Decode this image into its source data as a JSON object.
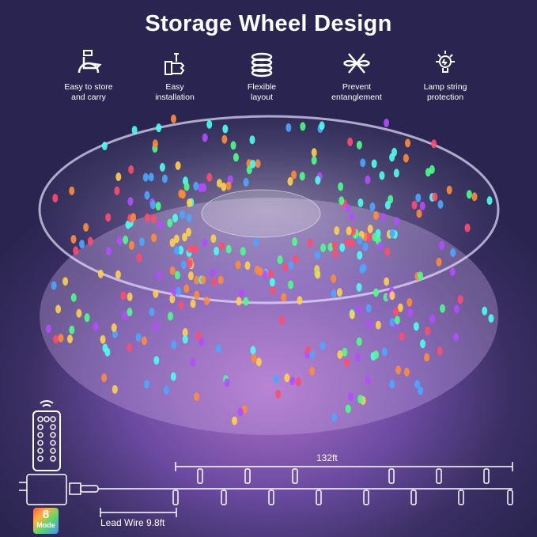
{
  "title": "Storage Wheel Design",
  "features": [
    {
      "icon": "hand-carry-icon",
      "label1": "Easy to store",
      "label2": "and carry"
    },
    {
      "icon": "thumbs-up-wrench-icon",
      "label1": "Easy",
      "label2": "installation"
    },
    {
      "icon": "coil-icon",
      "label1": "Flexible",
      "label2": "layout"
    },
    {
      "icon": "no-tangle-icon",
      "label1": "Prevent",
      "label2": "entanglement"
    },
    {
      "icon": "bulb-icon",
      "label1": "Lamp string",
      "label2": "protection"
    }
  ],
  "string_length": "132ft",
  "lead_wire": "Lead Wire 9.8ft",
  "mode_badge": {
    "number": "8",
    "label": "Mode"
  },
  "bulb_colors": [
    "#ff4d6d",
    "#4dff88",
    "#4da6ff",
    "#ffd24d",
    "#ff8c3a",
    "#b44dff",
    "#4dfff0"
  ]
}
